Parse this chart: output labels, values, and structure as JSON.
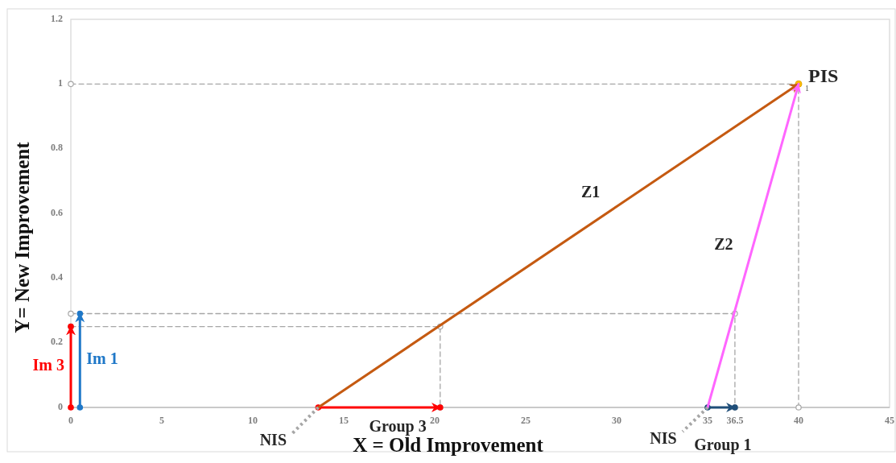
{
  "chart_data": {
    "type": "line",
    "xlabel": "X = Old Improvement",
    "ylabel": "Y= New Improvement",
    "xlim": [
      0,
      45
    ],
    "ylim": [
      0,
      1.2
    ],
    "xticks": [
      0,
      5,
      10,
      15,
      20,
      25,
      30,
      35,
      36.5,
      40,
      45
    ],
    "yticks": [
      0,
      0.2,
      0.4,
      0.6,
      0.8,
      1,
      1.2
    ],
    "series": [
      {
        "name": "Im 3",
        "color": "#ff0000",
        "x": [
          0,
          0
        ],
        "values": [
          0,
          0.25
        ],
        "marker": "circle",
        "line_style": "solid"
      },
      {
        "name": "Im 1",
        "color": "#1f78c8",
        "x": [
          0.5,
          0.5
        ],
        "values": [
          0,
          0.29
        ],
        "marker": "circle",
        "line_style": "solid"
      },
      {
        "name": "Group 3",
        "color": "#ff0000",
        "x": [
          13.6,
          20.3
        ],
        "values": [
          0,
          0
        ],
        "marker": "circle",
        "line_style": "solid"
      },
      {
        "name": "Group 1",
        "color": "#1f4e79",
        "x": [
          35,
          36.5
        ],
        "values": [
          0,
          0
        ],
        "marker": "circle",
        "line_style": "solid"
      },
      {
        "name": "Z1",
        "color": "#c55a11",
        "x": [
          13.6,
          40
        ],
        "values": [
          0,
          1
        ],
        "marker": "none",
        "line_style": "solid"
      },
      {
        "name": "Z2",
        "color": "#ff66ff",
        "x": [
          35,
          40
        ],
        "values": [
          0,
          1
        ],
        "marker": "none",
        "line_style": "solid"
      },
      {
        "color": "#a6a6a6",
        "x": [
          0,
          40,
          40
        ],
        "values": [
          1,
          1,
          0
        ],
        "marker": "circle",
        "line_style": "dashed"
      },
      {
        "color": "#a6a6a6",
        "x": [
          0,
          36.5,
          36.5
        ],
        "values": [
          0.29,
          0.29,
          0
        ],
        "marker": "circle",
        "line_style": "dashed"
      },
      {
        "color": "#a6a6a6",
        "x": [
          0,
          20.3,
          20.3
        ],
        "values": [
          0.25,
          0.25,
          0
        ],
        "marker": "circle",
        "line_style": "dashed"
      },
      {
        "type": "scatter",
        "color": "#ffc000",
        "x": [
          40
        ],
        "values": [
          1
        ],
        "marker": "circle",
        "value_labels": [
          "1"
        ]
      }
    ],
    "annotations": [
      {
        "text": "NIS",
        "x": 13.6,
        "y": 0
      },
      {
        "text": "NIS",
        "x": 35,
        "y": 0
      },
      {
        "text": "PIS",
        "x": 40,
        "y": 1
      }
    ]
  }
}
